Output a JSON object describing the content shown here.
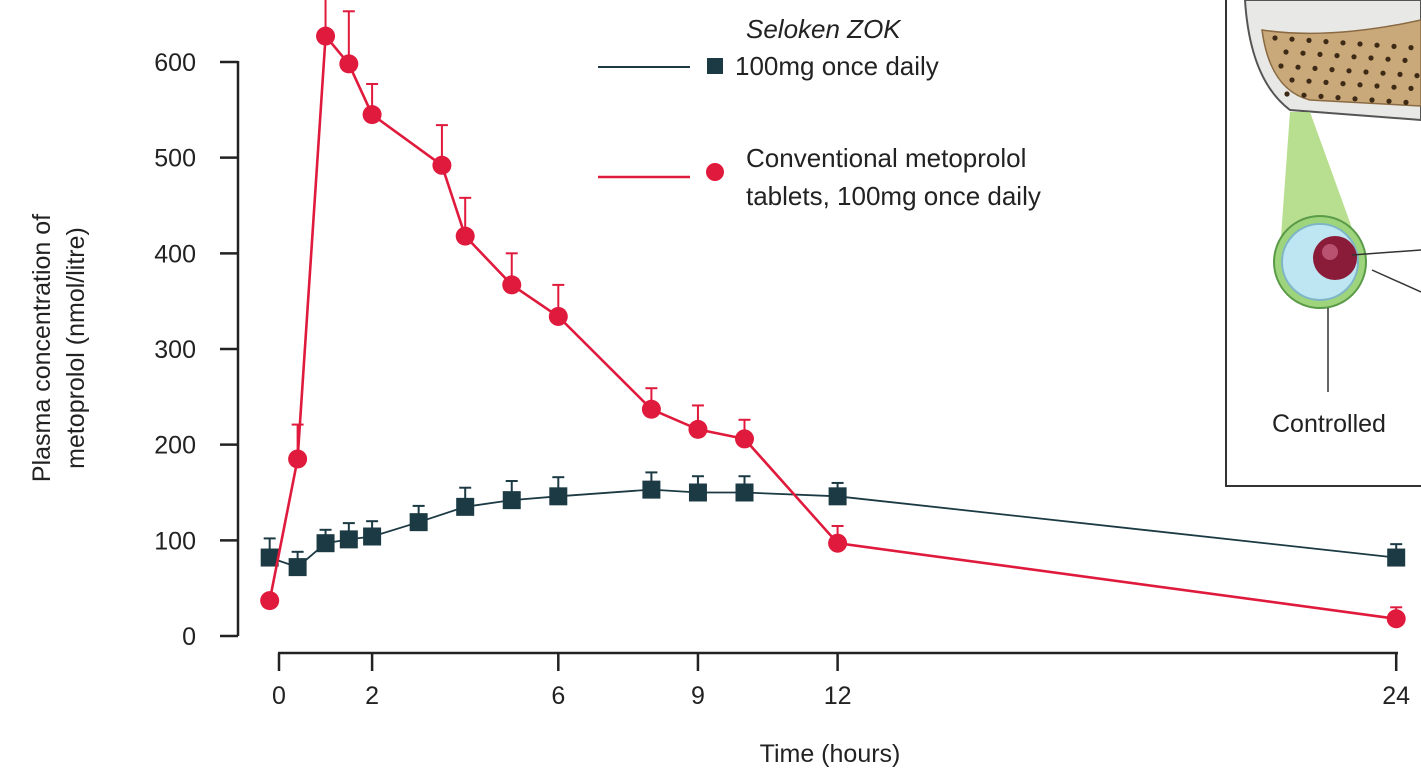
{
  "chart_data": {
    "type": "line",
    "title": "",
    "xlabel": "Time (hours)",
    "ylabel_line1": "Plasma concentration of",
    "ylabel_line2": "metoprolol (nmol/litre)",
    "xlim": [
      -0.2,
      24.2
    ],
    "ylim": [
      0,
      600
    ],
    "x_ticks": [
      0,
      2,
      6,
      9,
      12,
      24
    ],
    "x_tick_labels": [
      "0",
      "2",
      "6",
      "9",
      "12",
      "24"
    ],
    "y_ticks": [
      0,
      100,
      200,
      300,
      400,
      500,
      600
    ],
    "y_tick_labels": [
      "0",
      "100",
      "200",
      "300",
      "400",
      "500",
      "600"
    ],
    "legend_position": "top-center",
    "series": [
      {
        "name_italic": "Seloken ZOK",
        "name": "100mg once daily",
        "color": "#1c3a44",
        "marker": "square",
        "x": [
          -0.2,
          0.4,
          1,
          1.5,
          2,
          3,
          4,
          5,
          6,
          8,
          9,
          10,
          12,
          24
        ],
        "y": [
          82,
          72,
          97,
          101,
          104,
          119,
          135,
          142,
          146,
          153,
          150,
          150,
          146,
          82
        ],
        "err": [
          20,
          16,
          14,
          17,
          16,
          17,
          20,
          20,
          20,
          18,
          17,
          17,
          14,
          14
        ]
      },
      {
        "name": "Conventional metoprolol",
        "name_line2": "tablets, 100mg once daily",
        "color": "#e01a3c",
        "marker": "circle",
        "x": [
          -0.2,
          0.4,
          1,
          1.5,
          2,
          3.5,
          4,
          5,
          6,
          8,
          9,
          10,
          12,
          24
        ],
        "y": [
          37,
          185,
          627,
          598,
          545,
          492,
          418,
          367,
          334,
          237,
          216,
          206,
          97,
          18
        ],
        "err": [
          0,
          36,
          60,
          55,
          32,
          42,
          40,
          33,
          33,
          22,
          25,
          20,
          18,
          12
        ]
      }
    ],
    "inset_label": "Controlled"
  }
}
